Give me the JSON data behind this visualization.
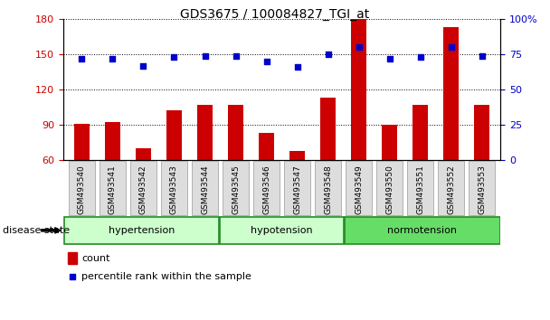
{
  "title": "GDS3675 / 100084827_TGI_at",
  "samples": [
    "GSM493540",
    "GSM493541",
    "GSM493542",
    "GSM493543",
    "GSM493544",
    "GSM493545",
    "GSM493546",
    "GSM493547",
    "GSM493548",
    "GSM493549",
    "GSM493550",
    "GSM493551",
    "GSM493552",
    "GSM493553"
  ],
  "counts": [
    91,
    92,
    70,
    102,
    107,
    107,
    83,
    68,
    113,
    180,
    90,
    107,
    173,
    107
  ],
  "percentiles": [
    72,
    72,
    67,
    73,
    74,
    74,
    70,
    66,
    75,
    80,
    72,
    73,
    80,
    74
  ],
  "bar_color": "#CC0000",
  "dot_color": "#0000CC",
  "ylim_left": [
    60,
    180
  ],
  "ylim_right": [
    0,
    100
  ],
  "yticks_left": [
    60,
    90,
    120,
    150,
    180
  ],
  "yticks_right": [
    0,
    25,
    50,
    75,
    100
  ],
  "groups": [
    {
      "label": "hypertension",
      "start": 0,
      "end": 5
    },
    {
      "label": "hypotension",
      "start": 5,
      "end": 9
    },
    {
      "label": "normotension",
      "start": 9,
      "end": 14
    }
  ],
  "group_colors": [
    "#CCFFCC",
    "#CCFFCC",
    "#66DD66"
  ],
  "group_border_color": "#228B22",
  "disease_state_label": "disease state",
  "legend_count_label": "count",
  "legend_percentile_label": "percentile rank within the sample",
  "tick_label_color_left": "#CC0000",
  "tick_label_color_right": "#0000CC",
  "bar_width": 0.5
}
